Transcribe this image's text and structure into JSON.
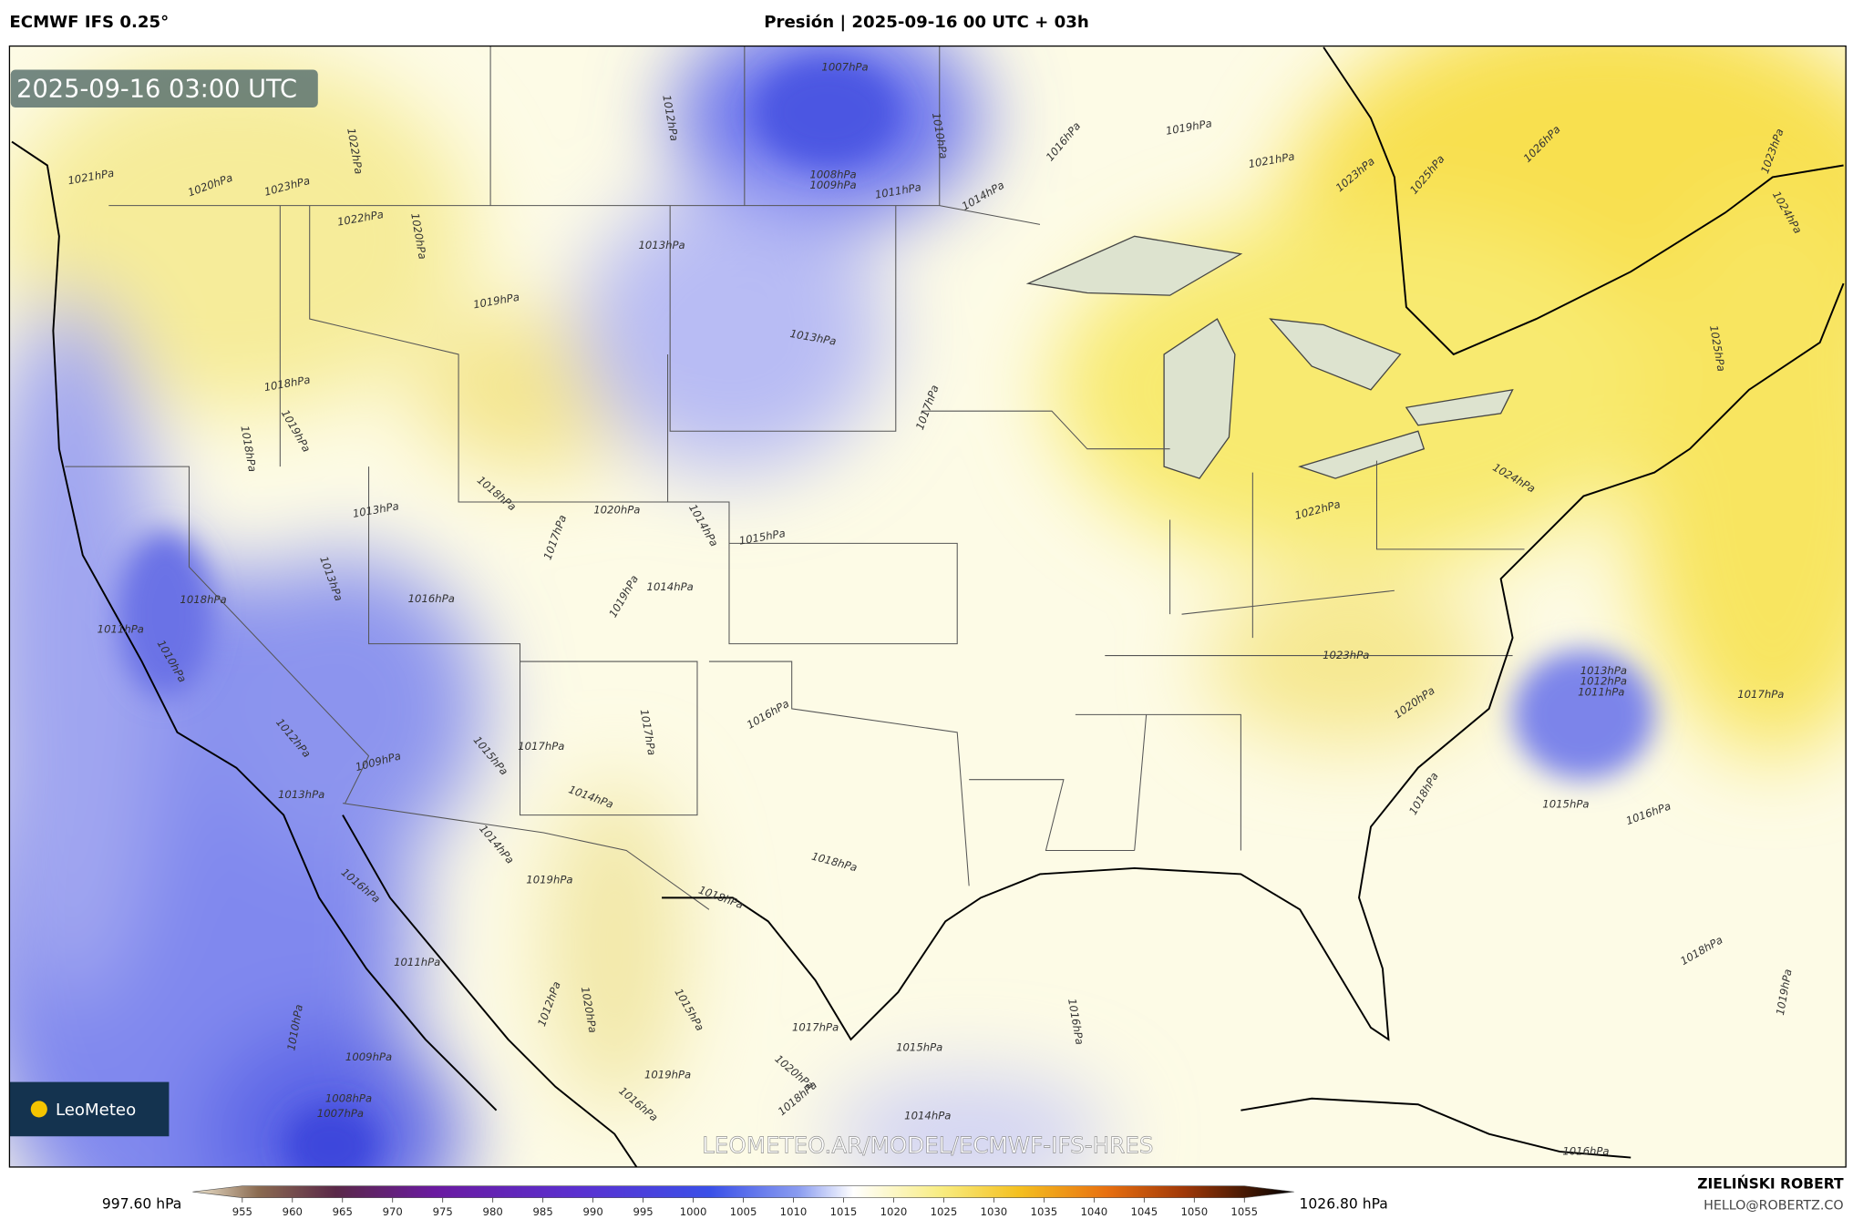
{
  "header": {
    "model": "ECMWF IFS 0.25°",
    "title": "Presión | 2025-09-16 00 UTC + 03h"
  },
  "map": {
    "timestamp": "2025-09-16 03:00 UTC",
    "watermark": "LEOMETEO.AR/MODEL/ECMWF-IFS-HRES",
    "logo": "LeoMeteo",
    "isobar_labels": [
      "1020hPa",
      "1023hPa",
      "1021hPa",
      "1022hPa",
      "1022hPa",
      "1020hPa",
      "1019hPa",
      "1018hPa",
      "1019hPa",
      "1018hPa",
      "1012hPa",
      "1013hPa",
      "1013hPa",
      "1007hPa",
      "1008hPa",
      "1009hPa",
      "1010hPa",
      "1011hPa",
      "1014hPa",
      "1016hPa",
      "1019hPa",
      "1021hPa",
      "1023hPa",
      "1025hPa",
      "1026hPa",
      "1023hPa",
      "1024hPa",
      "1025hPa",
      "1024hPa",
      "1022hPa",
      "1023hPa",
      "1020hPa",
      "1018hPa",
      "1013hPa",
      "1012hPa",
      "1011hPa",
      "1017hPa",
      "1015hPa",
      "1016hPa",
      "1018hPa",
      "1019hPa",
      "1016hPa",
      "1017hPa",
      "1015hPa",
      "1014hPa",
      "1014hPa",
      "1020hPa",
      "1019hPa",
      "1017hPa",
      "1018hPa",
      "1013hPa",
      "1016hPa",
      "1013hPa",
      "1018hPa",
      "1010hPa",
      "1011hPa",
      "1012hPa",
      "1013hPa",
      "1009hPa",
      "1015hPa",
      "1017hPa",
      "1014hPa",
      "1017hPa",
      "1016hPa",
      "1018hPa",
      "1019hPa",
      "1014hPa",
      "1016hPa",
      "1011hPa",
      "1010hPa",
      "1009hPa",
      "1008hPa",
      "1007hPa",
      "1019hPa",
      "1016hPa",
      "1012hPa",
      "1020hPa",
      "1017hPa",
      "1015hPa",
      "1016hPa",
      "1014hPa",
      "1020hPa",
      "1018hPa",
      "1018hPa",
      "1015hPa"
    ]
  },
  "colorbar": {
    "min_label": "997.60 hPa",
    "max_label": "1026.80 hPa",
    "ticks": [
      955,
      960,
      965,
      970,
      975,
      980,
      985,
      990,
      995,
      1000,
      1005,
      1010,
      1015,
      1020,
      1025,
      1030,
      1035,
      1040,
      1045,
      1050,
      1055
    ]
  },
  "credit": {
    "author": "ZIELIŃSKI ROBERT",
    "email": "HELLO@ROBERTZ.CO"
  }
}
